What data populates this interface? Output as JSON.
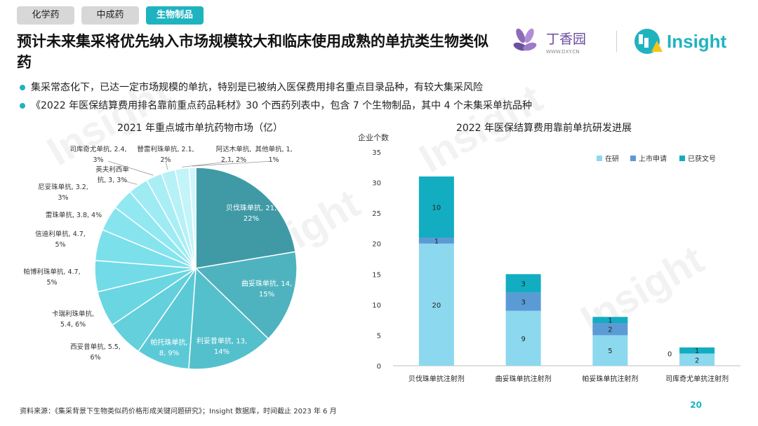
{
  "tabs": [
    {
      "label": "化学药",
      "active": false
    },
    {
      "label": "中成药",
      "active": false
    },
    {
      "label": "生物制品",
      "active": true
    }
  ],
  "title": "预计未来集采将优先纳入市场规模较大和临床使用成熟的单抗类生物类似药",
  "logos": {
    "dxy_name": "丁香园",
    "dxy_url": "WWW.DXY.CN",
    "insight": "Insight"
  },
  "bullets": [
    "集采常态化下，已达一定市场规模的单抗，特别是已被纳入医保费用排名重点目录品种，有较大集采风险",
    "《2022 年医保结算费用排名靠前重点药品耗材》30 个西药列表中，包含 7 个生物制品，其中 4 个未集采单抗品种"
  ],
  "watermark": "Insight",
  "chart_data": [
    {
      "type": "pie",
      "title": "2021 年重点城市单抗药物市场（亿）",
      "slices": [
        {
          "name": "贝伐珠单抗",
          "value": 21,
          "pct": "22%",
          "color": "#3f9aa6"
        },
        {
          "name": "曲妥珠单抗",
          "value": 14,
          "pct": "15%",
          "color": "#4fb3bf"
        },
        {
          "name": "利妥昔单抗",
          "value": 13,
          "pct": "14%",
          "color": "#54c0cc"
        },
        {
          "name": "帕托珠单抗",
          "value": 8,
          "pct": "9%",
          "color": "#5ccad6"
        },
        {
          "name": "西妥昔单抗",
          "value": 5.5,
          "pct": "6%",
          "color": "#63d0dc"
        },
        {
          "name": "卡瑞利珠单抗",
          "value": 5.4,
          "pct": "6%",
          "color": "#6ad6e2"
        },
        {
          "name": "帕博利珠单抗",
          "value": 4.7,
          "pct": "5%",
          "color": "#72dbe7"
        },
        {
          "name": "信迪利单抗",
          "value": 4.7,
          "pct": "5%",
          "color": "#7ce0eb"
        },
        {
          "name": "雷珠单抗",
          "value": 3.8,
          "pct": "4%",
          "color": "#86e4ee"
        },
        {
          "name": "尼妥珠单抗",
          "value": 3.2,
          "pct": "3%",
          "color": "#92e8f1"
        },
        {
          "name": "英夫利西单抗",
          "value": 3,
          "pct": "3%",
          "color": "#9eebf3"
        },
        {
          "name": "司库奇尤单抗",
          "value": 2.4,
          "pct": "3%",
          "color": "#aaeef5"
        },
        {
          "name": "替雷利珠单抗",
          "value": 2.1,
          "pct": "2%",
          "color": "#b6f1f7"
        },
        {
          "name": "阿达木单抗",
          "value": 2.1,
          "pct": "2%",
          "color": "#c2f4f9"
        },
        {
          "name": "其他单抗",
          "value": 1,
          "pct": "1%",
          "color": "#cef7fb"
        }
      ],
      "label_texts": [
        [
          "贝伐珠单抗, 21,",
          "22%"
        ],
        [
          "曲妥珠单抗, 14,",
          "15%"
        ],
        [
          "利妥昔单抗, 13,",
          "14%"
        ],
        [
          "帕托珠单抗,",
          "8, 9%"
        ],
        [
          "西妥昔单抗, 5.5,",
          "6%"
        ],
        [
          "卡瑞利珠单抗,",
          "5.4, 6%"
        ],
        [
          "帕博利珠单抗, 4.7,",
          "5%"
        ],
        [
          "信迪利单抗, 4.7,",
          "5%"
        ],
        [
          "雷珠单抗, 3.8, 4%"
        ],
        [
          "尼妥珠单抗, 3.2,",
          "3%"
        ],
        [
          "英夫利西单",
          "抗, 3, 3%"
        ],
        [
          "司库奇尤单抗, 2.4,",
          "3%"
        ],
        [
          "替雷利珠单抗, 2.1,",
          "2%"
        ],
        [
          "阿达木单抗,",
          "2.1, 2%"
        ],
        [
          "其他单抗, 1,",
          "1%"
        ]
      ]
    },
    {
      "type": "bar",
      "stacked": true,
      "title": "2022 年医保结算费用靠前单抗研发进展",
      "ylabel": "企业个数",
      "ylim": [
        0,
        35
      ],
      "yticks": [
        0,
        5,
        10,
        15,
        20,
        25,
        30,
        35
      ],
      "categories": [
        "贝伐珠单抗注射剂",
        "曲妥珠单抗注射剂",
        "帕妥珠单抗注射剂",
        "司库奇尤单抗注射剂"
      ],
      "series": [
        {
          "name": "在研",
          "values": [
            20,
            9,
            5,
            2
          ],
          "color": "#8cd8ef"
        },
        {
          "name": "上市申请",
          "values": [
            1,
            3,
            2,
            0
          ],
          "color": "#5b9bd5"
        },
        {
          "name": "已获文号",
          "values": [
            10,
            3,
            1,
            1
          ],
          "color": "#12adc1"
        }
      ],
      "legend": "top-right"
    }
  ],
  "footer": "资料来源：《集采背景下生物类似药价格形成关键问题研究》；Insight 数据库，时间截止 2023 年 6 月",
  "page_number": "20"
}
